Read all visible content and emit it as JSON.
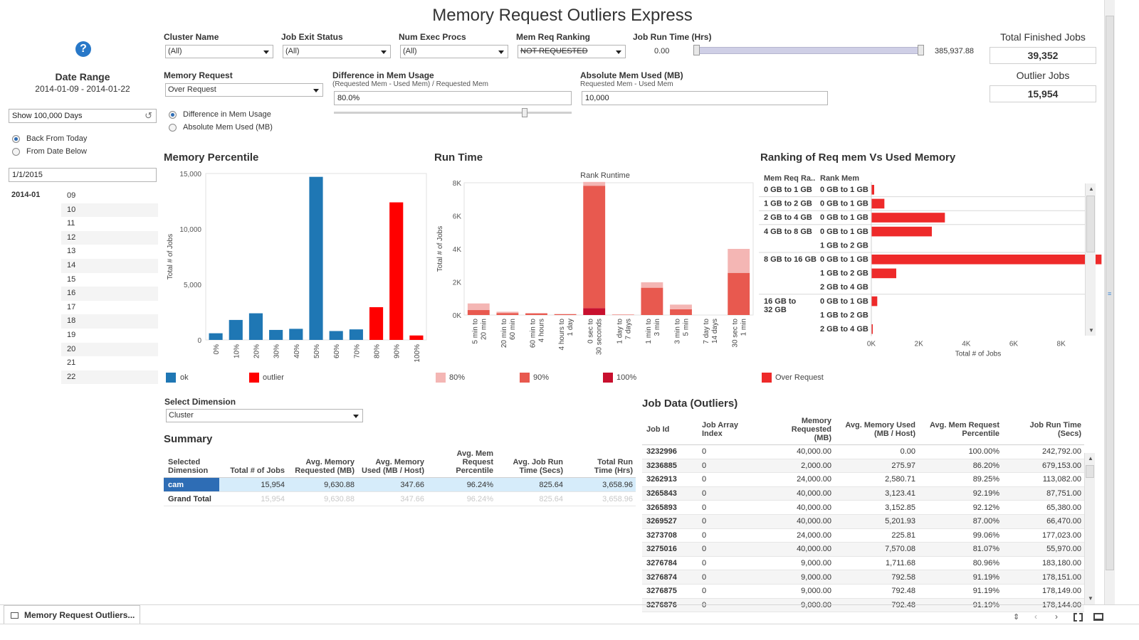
{
  "title": "Memory Request Outliers Express",
  "filters": {
    "cluster_name": {
      "label": "Cluster Name",
      "value": "(All)"
    },
    "job_exit_status": {
      "label": "Job Exit Status",
      "value": "(All)"
    },
    "num_exec_procs": {
      "label": "Num Exec Procs",
      "value": "(All)"
    },
    "mem_req_ranking": {
      "label": "Mem Req Ranking",
      "value": "NOT REQUESTED"
    },
    "job_run_time": {
      "label": "Job Run Time (Hrs)",
      "min": "0.00",
      "max": "385,937.88"
    },
    "memory_request": {
      "label": "Memory Request",
      "value": "Over Request"
    },
    "diff_mem_usage": {
      "label": "Difference in Mem Usage",
      "sub": "(Requested Mem - Used Mem) / Requested Mem",
      "value": "80.0%",
      "slider_position": 0.85
    },
    "abs_mem_used": {
      "label": "Absolute Mem Used (MB)",
      "sub": "Requested Mem - Used Mem",
      "value": "10,000"
    },
    "mode_options": [
      {
        "label": "Difference in Mem Usage",
        "selected": true
      },
      {
        "label": "Absolute Mem Used (MB)",
        "selected": false
      }
    ]
  },
  "kpis": {
    "total_finished_label": "Total Finished Jobs",
    "total_finished_value": "39,352",
    "outlier_label": "Outlier Jobs",
    "outlier_value": "15,954"
  },
  "date_range": {
    "label": "Date Range",
    "value": "2014-01-09 - 2014-01-22",
    "show_days": "Show 100,000 Days",
    "options": [
      {
        "label": "Back From Today",
        "selected": true
      },
      {
        "label": "From Date Below",
        "selected": false
      }
    ],
    "from_date": "1/1/2015",
    "month": "2014-01",
    "days": [
      "09",
      "10",
      "11",
      "12",
      "13",
      "14",
      "15",
      "16",
      "17",
      "18",
      "19",
      "20",
      "21",
      "22"
    ]
  },
  "memory_percentile": {
    "title": "Memory Percentile",
    "legend": [
      {
        "label": "ok",
        "color": "#1f77b4"
      },
      {
        "label": "outlier",
        "color": "#ff0000"
      }
    ]
  },
  "run_time": {
    "title": "Run Time",
    "legend": [
      {
        "label": "80%",
        "color": "#f4b6b4"
      },
      {
        "label": "90%",
        "color": "#e8594f"
      },
      {
        "label": "100%",
        "color": "#c8102e"
      }
    ]
  },
  "ranking": {
    "title": "Ranking of Req mem Vs Used Memory",
    "col1": "Mem Req Ra..",
    "col2": "Rank Mem",
    "legend": [
      {
        "label": "Over Request",
        "color": "#ee2a2a"
      }
    ]
  },
  "chart_data": [
    {
      "type": "bar",
      "title": "",
      "ylabel": "Total # of Jobs",
      "ylim": [
        0,
        15000
      ],
      "yticks": [
        "0",
        "5,000",
        "10,000",
        "15,000"
      ],
      "categories": [
        "0%",
        "10%",
        "20%",
        "30%",
        "40%",
        "50%",
        "60%",
        "70%",
        "80%",
        "90%",
        "100%"
      ],
      "values": [
        600,
        1800,
        2400,
        900,
        1000,
        14700,
        800,
        950,
        2950,
        12400,
        400
      ],
      "series_color": [
        "#1f77b4",
        "#1f77b4",
        "#1f77b4",
        "#1f77b4",
        "#1f77b4",
        "#1f77b4",
        "#1f77b4",
        "#1f77b4",
        "#ff0000",
        "#ff0000",
        "#ff0000"
      ]
    },
    {
      "type": "bar",
      "title": "Rank Runtime",
      "ylabel": "Total # of Jobs",
      "ylim": [
        0,
        8000
      ],
      "yticks": [
        "0K",
        "2K",
        "4K",
        "6K",
        "8K"
      ],
      "categories": [
        "5 min to 20 min",
        "20 min to 60 min",
        "60 min to 4 hours",
        "4 hours to 1 day",
        "0 sec to 30 seconds",
        "1 day to 7 days",
        "1 min to 3 min",
        "3 min to 5 min",
        "7 day to 14 days",
        "30 sec to 1 min"
      ],
      "series": [
        {
          "name": "100%",
          "values": [
            0,
            0,
            0,
            0,
            420,
            0,
            0,
            0,
            0,
            0
          ]
        },
        {
          "name": "90%",
          "values": [
            300,
            120,
            90,
            50,
            7400,
            20,
            1650,
            350,
            0,
            2550
          ]
        },
        {
          "name": "80%",
          "values": [
            400,
            80,
            40,
            20,
            230,
            10,
            330,
            280,
            0,
            1450
          ]
        }
      ]
    },
    {
      "type": "bar",
      "orientation": "horizontal",
      "xlabel": "Total # of Jobs",
      "xlim": [
        0,
        9000
      ],
      "xticks": [
        "0K",
        "2K",
        "4K",
        "6K",
        "8K"
      ],
      "rows": [
        {
          "group": "0 GB to 1 GB",
          "rank": "0 GB to 1 GB",
          "value": 120
        },
        {
          "group": "1 GB to 2 GB",
          "rank": "0 GB to 1 GB",
          "value": 550
        },
        {
          "group": "2 GB to 4 GB",
          "rank": "0 GB to 1 GB",
          "value": 3100
        },
        {
          "group": "4 GB to 8 GB",
          "rank": "0 GB to 1 GB",
          "value": 2550
        },
        {
          "group": "",
          "rank": "1 GB to 2 GB",
          "value": 0
        },
        {
          "group": "8 GB to 16 GB",
          "rank": "0 GB to 1 GB",
          "value": 9700
        },
        {
          "group": "",
          "rank": "1 GB to 2 GB",
          "value": 1050
        },
        {
          "group": "",
          "rank": "2 GB to 4 GB",
          "value": 0
        },
        {
          "group": "16 GB to 32 GB",
          "rank": "0 GB to 1 GB",
          "value": 250
        },
        {
          "group": "",
          "rank": "1 GB to 2 GB",
          "value": 0
        },
        {
          "group": "",
          "rank": "2 GB to 4 GB",
          "value": 30
        }
      ]
    }
  ],
  "select_dimension": {
    "label": "Select Dimension",
    "value": "Cluster"
  },
  "summary": {
    "title": "Summary",
    "headers": [
      "Selected\nDimension",
      "Total # of Jobs",
      "Avg. Memory\nRequested (MB)",
      "Avg. Memory\nUsed (MB / Host)",
      "Avg. Mem\nRequest\nPercentile",
      "Avg. Job Run\nTime (Secs)",
      "Total Run\nTime (Hrs)"
    ],
    "rows": [
      [
        "cam",
        "15,954",
        "9,630.88",
        "347.66",
        "96.24%",
        "825.64",
        "3,658.96"
      ],
      [
        "Grand Total",
        "15,954",
        "9,630.88",
        "347.66",
        "96.24%",
        "825.64",
        "3,658.96"
      ]
    ]
  },
  "job_data": {
    "title": "Job Data (Outliers)",
    "headers": [
      "Job Id",
      "Job Array\nIndex",
      "Memory Requested\n(MB)",
      "Avg. Memory Used\n(MB / Host)",
      "Avg. Mem Request\nPercentile",
      "Job Run Time (Secs)"
    ],
    "rows": [
      [
        "3232996",
        "0",
        "40,000.00",
        "0.00",
        "100.00%",
        "242,792.00"
      ],
      [
        "3236885",
        "0",
        "2,000.00",
        "275.97",
        "86.20%",
        "679,153.00"
      ],
      [
        "3262913",
        "0",
        "24,000.00",
        "2,580.71",
        "89.25%",
        "113,082.00"
      ],
      [
        "3265843",
        "0",
        "40,000.00",
        "3,123.41",
        "92.19%",
        "87,751.00"
      ],
      [
        "3265893",
        "0",
        "40,000.00",
        "3,152.85",
        "92.12%",
        "65,380.00"
      ],
      [
        "3269527",
        "0",
        "40,000.00",
        "5,201.93",
        "87.00%",
        "66,470.00"
      ],
      [
        "3273708",
        "0",
        "24,000.00",
        "225.81",
        "99.06%",
        "177,023.00"
      ],
      [
        "3275016",
        "0",
        "40,000.00",
        "7,570.08",
        "81.07%",
        "55,970.00"
      ],
      [
        "3276784",
        "0",
        "9,000.00",
        "1,711.68",
        "80.96%",
        "183,180.00"
      ],
      [
        "3276874",
        "0",
        "9,000.00",
        "792.58",
        "91.19%",
        "178,151.00"
      ],
      [
        "3276875",
        "0",
        "9,000.00",
        "792.48",
        "91.19%",
        "178,149.00"
      ],
      [
        "3276876",
        "0",
        "9,000.00",
        "792.48",
        "91.19%",
        "178,144.00"
      ]
    ]
  },
  "tab": {
    "label": "Memory Request Outliers..."
  },
  "colors": {
    "ok": "#1f77b4",
    "outlier": "#ff0000",
    "selected_row": "#2e6db5",
    "selected_band": "#d6ecfa"
  }
}
